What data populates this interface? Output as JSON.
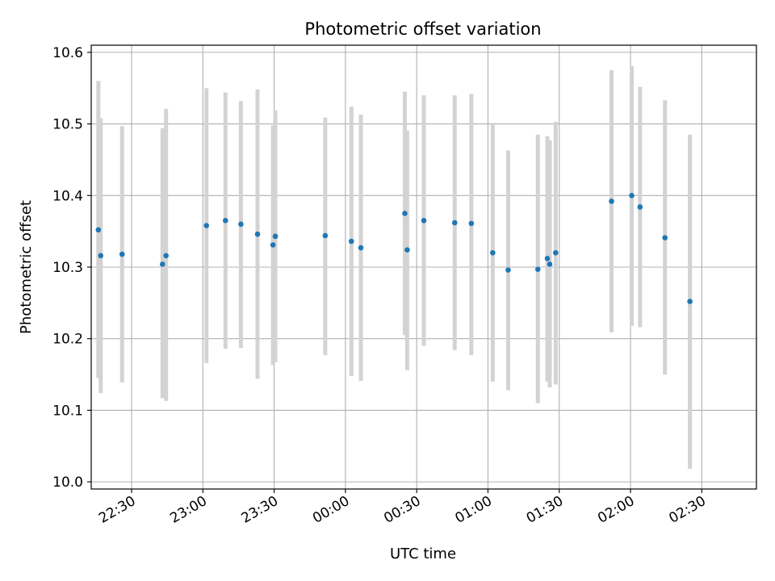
{
  "chart_data": {
    "type": "scatter",
    "title": "Photometric offset variation",
    "xlabel": "UTC time",
    "ylabel": "Photometric offset",
    "date": "2000-01-01",
    "xlim": [
      "22:13",
      "02:53"
    ],
    "ylim": [
      9.99,
      10.61
    ],
    "grid": true,
    "legend": "none",
    "colors": {
      "point": "#1f77b4",
      "errorbar": "#d3d3d3",
      "grid": "#b0b0b0",
      "axis": "#000000"
    },
    "x_ticks": [
      "22:30",
      "23:00",
      "23:30",
      "00:00",
      "00:30",
      "01:00",
      "01:30",
      "02:00",
      "02:30"
    ],
    "y_ticks": [
      "10.0",
      "10.1",
      "10.2",
      "10.3",
      "10.4",
      "10.5",
      "10.6"
    ],
    "points": [
      {
        "t": "22:16:00",
        "y": 10.352,
        "err_low": 10.145,
        "err_high": 10.56
      },
      {
        "t": "22:17:00",
        "y": 10.316,
        "err_low": 10.124,
        "err_high": 10.508
      },
      {
        "t": "22:26:00",
        "y": 10.318,
        "err_low": 10.139,
        "err_high": 10.497
      },
      {
        "t": "22:43:00",
        "y": 10.304,
        "err_low": 10.117,
        "err_high": 10.494
      },
      {
        "t": "22:44:30",
        "y": 10.316,
        "err_low": 10.113,
        "err_high": 10.521
      },
      {
        "t": "23:01:30",
        "y": 10.358,
        "err_low": 10.166,
        "err_high": 10.55
      },
      {
        "t": "23:09:30",
        "y": 10.365,
        "err_low": 10.186,
        "err_high": 10.544
      },
      {
        "t": "23:16:00",
        "y": 10.36,
        "err_low": 10.187,
        "err_high": 10.532
      },
      {
        "t": "23:23:00",
        "y": 10.346,
        "err_low": 10.144,
        "err_high": 10.548
      },
      {
        "t": "23:29:30",
        "y": 10.331,
        "err_low": 10.163,
        "err_high": 10.498
      },
      {
        "t": "23:30:30",
        "y": 10.343,
        "err_low": 10.167,
        "err_high": 10.519
      },
      {
        "t": "23:51:30",
        "y": 10.344,
        "err_low": 10.177,
        "err_high": 10.509
      },
      {
        "t": "00:02:30",
        "y": 10.336,
        "err_low": 10.148,
        "err_high": 10.524
      },
      {
        "t": "00:06:30",
        "y": 10.327,
        "err_low": 10.141,
        "err_high": 10.513
      },
      {
        "t": "00:25:00",
        "y": 10.375,
        "err_low": 10.205,
        "err_high": 10.545
      },
      {
        "t": "00:26:00",
        "y": 10.324,
        "err_low": 10.156,
        "err_high": 10.491
      },
      {
        "t": "00:33:00",
        "y": 10.365,
        "err_low": 10.19,
        "err_high": 10.54
      },
      {
        "t": "00:46:00",
        "y": 10.362,
        "err_low": 10.184,
        "err_high": 10.54
      },
      {
        "t": "00:53:00",
        "y": 10.361,
        "err_low": 10.177,
        "err_high": 10.542
      },
      {
        "t": "01:02:00",
        "y": 10.32,
        "err_low": 10.14,
        "err_high": 10.499
      },
      {
        "t": "01:08:30",
        "y": 10.296,
        "err_low": 10.128,
        "err_high": 10.463
      },
      {
        "t": "01:21:00",
        "y": 10.297,
        "err_low": 10.11,
        "err_high": 10.485
      },
      {
        "t": "01:25:00",
        "y": 10.312,
        "err_low": 10.14,
        "err_high": 10.483
      },
      {
        "t": "01:26:00",
        "y": 10.304,
        "err_low": 10.132,
        "err_high": 10.477
      },
      {
        "t": "01:28:30",
        "y": 10.32,
        "err_low": 10.136,
        "err_high": 10.503
      },
      {
        "t": "01:52:00",
        "y": 10.392,
        "err_low": 10.209,
        "err_high": 10.575
      },
      {
        "t": "02:00:30",
        "y": 10.4,
        "err_low": 10.218,
        "err_high": 10.581
      },
      {
        "t": "02:04:00",
        "y": 10.384,
        "err_low": 10.216,
        "err_high": 10.552
      },
      {
        "t": "02:14:30",
        "y": 10.341,
        "err_low": 10.15,
        "err_high": 10.533
      },
      {
        "t": "02:25:00",
        "y": 10.252,
        "err_low": 10.018,
        "err_high": 10.485
      }
    ]
  }
}
